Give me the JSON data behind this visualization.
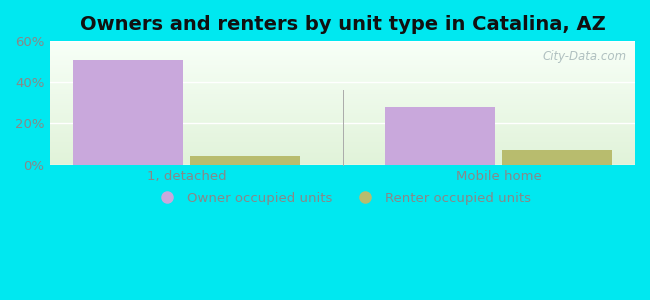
{
  "title": "Owners and renters by unit type in Catalina, AZ",
  "categories": [
    "1, detached",
    "Mobile home"
  ],
  "owner_values": [
    51,
    28
  ],
  "renter_values": [
    4,
    7
  ],
  "owner_color": "#c9a8dc",
  "renter_color": "#b8bc6e",
  "owner_label": "Owner occupied units",
  "renter_label": "Renter occupied units",
  "ylim": [
    0,
    60
  ],
  "yticks": [
    0,
    20,
    40,
    60
  ],
  "ytick_labels": [
    "0%",
    "20%",
    "40%",
    "60%"
  ],
  "bar_width": 0.28,
  "outer_bg": "#00e8f0",
  "watermark": "City-Data.com",
  "title_fontsize": 14,
  "tick_fontsize": 9.5,
  "legend_fontsize": 9.5,
  "grid_color": "#d0e8d0",
  "label_color": "#888888"
}
